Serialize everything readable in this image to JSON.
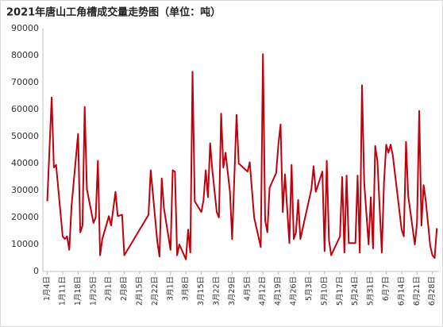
{
  "chart_data": {
    "type": "line",
    "title": "2021年唐山工角槽成交量走势图（单位：吨）",
    "color": "#c0000c",
    "x": [
      4,
      6,
      7,
      8,
      11,
      12,
      13,
      14,
      15,
      18,
      19,
      20,
      21,
      22,
      25,
      26,
      27,
      28,
      29,
      32,
      33,
      35,
      36,
      38,
      39,
      50,
      51,
      54,
      55,
      56,
      57,
      60,
      61,
      62,
      63,
      64,
      67,
      68,
      69,
      70,
      71,
      74,
      75,
      76,
      77,
      78,
      79,
      81,
      82,
      83,
      84,
      85,
      87,
      88,
      90,
      91,
      95,
      96,
      98,
      101,
      102,
      103,
      104,
      105,
      108,
      109,
      110,
      111,
      112,
      114,
      115,
      116,
      117,
      118,
      119,
      124,
      125,
      126,
      129,
      130,
      131,
      132,
      133,
      137,
      138,
      139,
      140,
      141,
      144,
      145,
      146,
      147,
      148,
      150,
      151,
      152,
      153,
      154,
      156,
      157,
      158,
      159,
      160,
      161,
      165,
      166,
      167,
      168,
      171,
      172,
      173,
      174,
      175,
      176,
      178,
      179,
      180,
      181
    ],
    "values": [
      26000,
      64500,
      38500,
      39500,
      13000,
      12000,
      13000,
      8000,
      24000,
      51000,
      14500,
      17000,
      61000,
      30500,
      18000,
      20000,
      41000,
      6000,
      12000,
      20500,
      17000,
      29500,
      20500,
      21000,
      6000,
      21000,
      37500,
      11000,
      5500,
      34500,
      23500,
      8000,
      37500,
      37000,
      6000,
      10000,
      4500,
      15500,
      7000,
      74000,
      26000,
      22000,
      26500,
      37500,
      27500,
      47500,
      37500,
      22000,
      20000,
      58500,
      38500,
      44000,
      29500,
      12000,
      58000,
      40000,
      37000,
      40500,
      20000,
      9000,
      80500,
      19000,
      14500,
      31000,
      36500,
      47000,
      54500,
      22000,
      36000,
      10500,
      39500,
      12000,
      14500,
      26500,
      12000,
      30500,
      39000,
      29500,
      37000,
      7500,
      41000,
      11500,
      6000,
      13000,
      35000,
      7000,
      35500,
      10500,
      10500,
      35500,
      7000,
      69000,
      33000,
      10000,
      27500,
      8500,
      46500,
      41000,
      7000,
      33000,
      47000,
      44000,
      47000,
      43000,
      15500,
      13000,
      48000,
      28000,
      10000,
      18000,
      59500,
      17000,
      32000,
      26000,
      9500,
      6000,
      5000,
      16000
    ],
    "xlim": [
      2,
      182
    ],
    "xticks": [
      {
        "value": 4,
        "label": "1月4日"
      },
      {
        "value": 11,
        "label": "1月11日"
      },
      {
        "value": 18,
        "label": "1月18日"
      },
      {
        "value": 25,
        "label": "1月25日"
      },
      {
        "value": 32,
        "label": "2月1日"
      },
      {
        "value": 39,
        "label": "2月8日"
      },
      {
        "value": 46,
        "label": "2月15日"
      },
      {
        "value": 53,
        "label": "2月22日"
      },
      {
        "value": 60,
        "label": "3月1日"
      },
      {
        "value": 67,
        "label": "3月8日"
      },
      {
        "value": 74,
        "label": "3月15日"
      },
      {
        "value": 81,
        "label": "3月22日"
      },
      {
        "value": 88,
        "label": "3月29日"
      },
      {
        "value": 95,
        "label": "4月5日"
      },
      {
        "value": 102,
        "label": "4月12日"
      },
      {
        "value": 109,
        "label": "4月19日"
      },
      {
        "value": 116,
        "label": "4月26日"
      },
      {
        "value": 123,
        "label": "5月3日"
      },
      {
        "value": 130,
        "label": "5月10日"
      },
      {
        "value": 137,
        "label": "5月17日"
      },
      {
        "value": 144,
        "label": "5月24日"
      },
      {
        "value": 151,
        "label": "5月31日"
      },
      {
        "value": 158,
        "label": "6月7日"
      },
      {
        "value": 165,
        "label": "6月14日"
      },
      {
        "value": 172,
        "label": "6月21日"
      },
      {
        "value": 179,
        "label": "6月28日"
      }
    ],
    "ylim": [
      0,
      90000
    ],
    "yticks": [
      0,
      10000,
      20000,
      30000,
      40000,
      50000,
      60000,
      70000,
      80000,
      90000
    ],
    "grid": false
  }
}
